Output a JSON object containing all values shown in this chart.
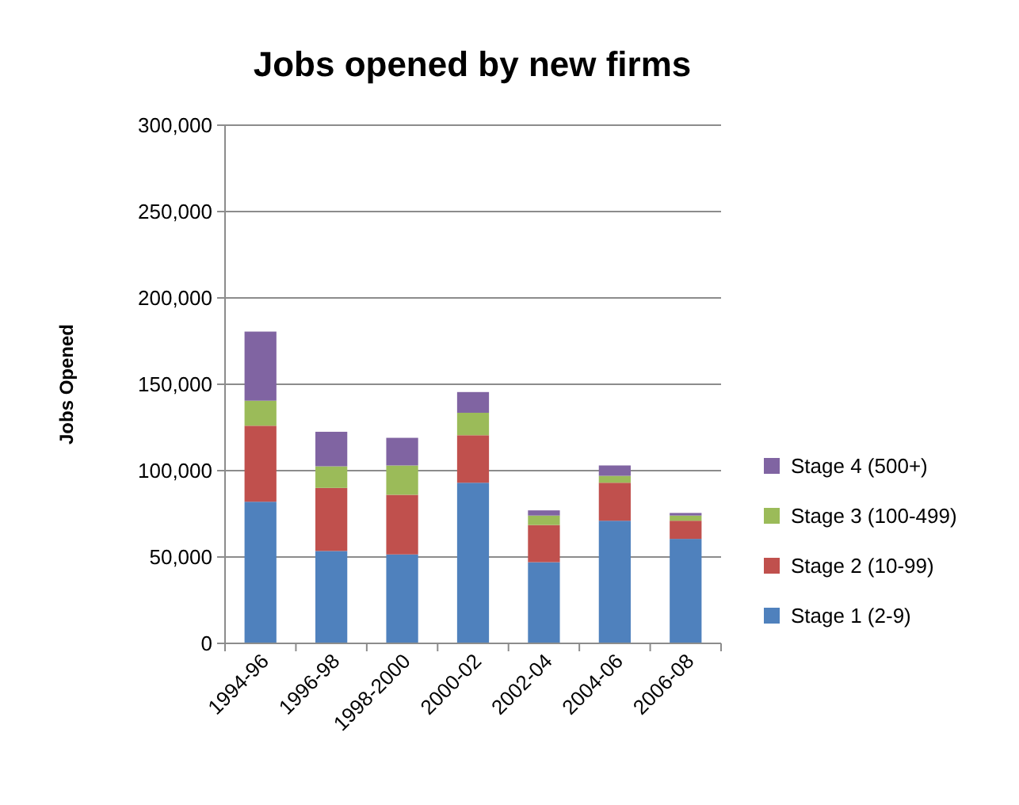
{
  "chart_data": {
    "type": "bar",
    "title": "Jobs opened by new firms",
    "ylabel": "Jobs Opened",
    "categories": [
      "1994-96",
      "1996-98",
      "1998-2000",
      "2000-02",
      "2002-04",
      "2004-06",
      "2006-08"
    ],
    "stacked": true,
    "legend": "right",
    "grid": "y",
    "ylim": [
      0,
      300000
    ],
    "yticks": [
      {
        "value": 0,
        "label": "0"
      },
      {
        "value": 50000,
        "label": "50,000"
      },
      {
        "value": 100000,
        "label": "100,000"
      },
      {
        "value": 150000,
        "label": "150,000"
      },
      {
        "value": 200000,
        "label": "200,000"
      },
      {
        "value": 250000,
        "label": "250,000"
      },
      {
        "value": 300000,
        "label": "300,000"
      }
    ],
    "series": [
      {
        "name": "Stage 1 (2-9)",
        "color": "#4f81bd",
        "values": [
          82000,
          53500,
          51500,
          93000,
          47000,
          71000,
          60500
        ]
      },
      {
        "name": "Stage 2 (10-99)",
        "color": "#c0504d",
        "values": [
          44000,
          36500,
          34500,
          27500,
          21500,
          22000,
          10500
        ]
      },
      {
        "name": "Stage 3 (100-499)",
        "color": "#9bbb59",
        "values": [
          14500,
          12500,
          17000,
          13000,
          5500,
          4000,
          3000
        ]
      },
      {
        "name": "Stage 4 (500+)",
        "color": "#8064a2",
        "values": [
          40000,
          20000,
          16000,
          12000,
          3000,
          6000,
          1500
        ]
      }
    ]
  }
}
